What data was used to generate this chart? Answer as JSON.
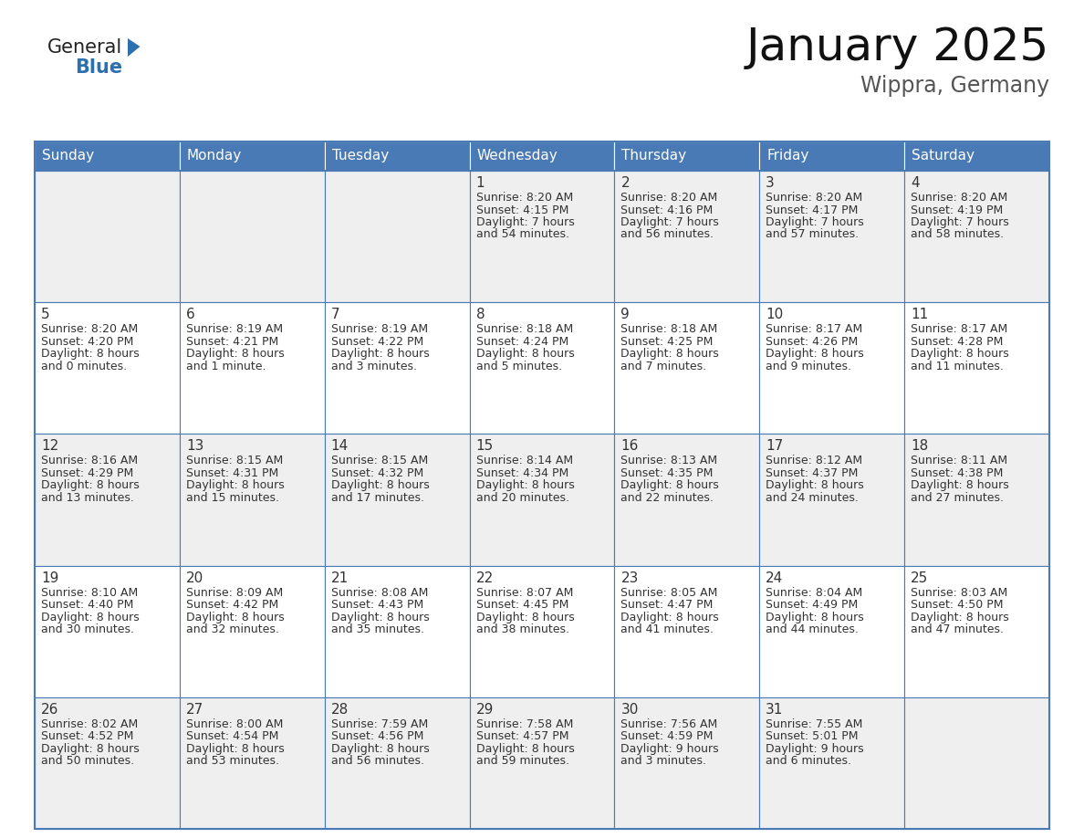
{
  "title": "January 2025",
  "subtitle": "Wippra, Germany",
  "header_color": "#4a7ab5",
  "header_text_color": "#ffffff",
  "cell_bg_row0": "#efefef",
  "cell_bg_row1": "#ffffff",
  "grid_line_color": "#4a7ab5",
  "text_color": "#333333",
  "logo_general_color": "#222222",
  "logo_blue_color": "#2e6fad",
  "day_headers": [
    "Sunday",
    "Monday",
    "Tuesday",
    "Wednesday",
    "Thursday",
    "Friday",
    "Saturday"
  ],
  "calendar_data": [
    [
      {
        "day": "",
        "sunrise": "",
        "sunset": "",
        "daylight": ""
      },
      {
        "day": "",
        "sunrise": "",
        "sunset": "",
        "daylight": ""
      },
      {
        "day": "",
        "sunrise": "",
        "sunset": "",
        "daylight": ""
      },
      {
        "day": "1",
        "sunrise": "8:20 AM",
        "sunset": "4:15 PM",
        "daylight": "7 hours\nand 54 minutes."
      },
      {
        "day": "2",
        "sunrise": "8:20 AM",
        "sunset": "4:16 PM",
        "daylight": "7 hours\nand 56 minutes."
      },
      {
        "day": "3",
        "sunrise": "8:20 AM",
        "sunset": "4:17 PM",
        "daylight": "7 hours\nand 57 minutes."
      },
      {
        "day": "4",
        "sunrise": "8:20 AM",
        "sunset": "4:19 PM",
        "daylight": "7 hours\nand 58 minutes."
      }
    ],
    [
      {
        "day": "5",
        "sunrise": "8:20 AM",
        "sunset": "4:20 PM",
        "daylight": "8 hours\nand 0 minutes."
      },
      {
        "day": "6",
        "sunrise": "8:19 AM",
        "sunset": "4:21 PM",
        "daylight": "8 hours\nand 1 minute."
      },
      {
        "day": "7",
        "sunrise": "8:19 AM",
        "sunset": "4:22 PM",
        "daylight": "8 hours\nand 3 minutes."
      },
      {
        "day": "8",
        "sunrise": "8:18 AM",
        "sunset": "4:24 PM",
        "daylight": "8 hours\nand 5 minutes."
      },
      {
        "day": "9",
        "sunrise": "8:18 AM",
        "sunset": "4:25 PM",
        "daylight": "8 hours\nand 7 minutes."
      },
      {
        "day": "10",
        "sunrise": "8:17 AM",
        "sunset": "4:26 PM",
        "daylight": "8 hours\nand 9 minutes."
      },
      {
        "day": "11",
        "sunrise": "8:17 AM",
        "sunset": "4:28 PM",
        "daylight": "8 hours\nand 11 minutes."
      }
    ],
    [
      {
        "day": "12",
        "sunrise": "8:16 AM",
        "sunset": "4:29 PM",
        "daylight": "8 hours\nand 13 minutes."
      },
      {
        "day": "13",
        "sunrise": "8:15 AM",
        "sunset": "4:31 PM",
        "daylight": "8 hours\nand 15 minutes."
      },
      {
        "day": "14",
        "sunrise": "8:15 AM",
        "sunset": "4:32 PM",
        "daylight": "8 hours\nand 17 minutes."
      },
      {
        "day": "15",
        "sunrise": "8:14 AM",
        "sunset": "4:34 PM",
        "daylight": "8 hours\nand 20 minutes."
      },
      {
        "day": "16",
        "sunrise": "8:13 AM",
        "sunset": "4:35 PM",
        "daylight": "8 hours\nand 22 minutes."
      },
      {
        "day": "17",
        "sunrise": "8:12 AM",
        "sunset": "4:37 PM",
        "daylight": "8 hours\nand 24 minutes."
      },
      {
        "day": "18",
        "sunrise": "8:11 AM",
        "sunset": "4:38 PM",
        "daylight": "8 hours\nand 27 minutes."
      }
    ],
    [
      {
        "day": "19",
        "sunrise": "8:10 AM",
        "sunset": "4:40 PM",
        "daylight": "8 hours\nand 30 minutes."
      },
      {
        "day": "20",
        "sunrise": "8:09 AM",
        "sunset": "4:42 PM",
        "daylight": "8 hours\nand 32 minutes."
      },
      {
        "day": "21",
        "sunrise": "8:08 AM",
        "sunset": "4:43 PM",
        "daylight": "8 hours\nand 35 minutes."
      },
      {
        "day": "22",
        "sunrise": "8:07 AM",
        "sunset": "4:45 PM",
        "daylight": "8 hours\nand 38 minutes."
      },
      {
        "day": "23",
        "sunrise": "8:05 AM",
        "sunset": "4:47 PM",
        "daylight": "8 hours\nand 41 minutes."
      },
      {
        "day": "24",
        "sunrise": "8:04 AM",
        "sunset": "4:49 PM",
        "daylight": "8 hours\nand 44 minutes."
      },
      {
        "day": "25",
        "sunrise": "8:03 AM",
        "sunset": "4:50 PM",
        "daylight": "8 hours\nand 47 minutes."
      }
    ],
    [
      {
        "day": "26",
        "sunrise": "8:02 AM",
        "sunset": "4:52 PM",
        "daylight": "8 hours\nand 50 minutes."
      },
      {
        "day": "27",
        "sunrise": "8:00 AM",
        "sunset": "4:54 PM",
        "daylight": "8 hours\nand 53 minutes."
      },
      {
        "day": "28",
        "sunrise": "7:59 AM",
        "sunset": "4:56 PM",
        "daylight": "8 hours\nand 56 minutes."
      },
      {
        "day": "29",
        "sunrise": "7:58 AM",
        "sunset": "4:57 PM",
        "daylight": "8 hours\nand 59 minutes."
      },
      {
        "day": "30",
        "sunrise": "7:56 AM",
        "sunset": "4:59 PM",
        "daylight": "9 hours\nand 3 minutes."
      },
      {
        "day": "31",
        "sunrise": "7:55 AM",
        "sunset": "5:01 PM",
        "daylight": "9 hours\nand 6 minutes."
      },
      {
        "day": "",
        "sunrise": "",
        "sunset": "",
        "daylight": ""
      }
    ]
  ]
}
